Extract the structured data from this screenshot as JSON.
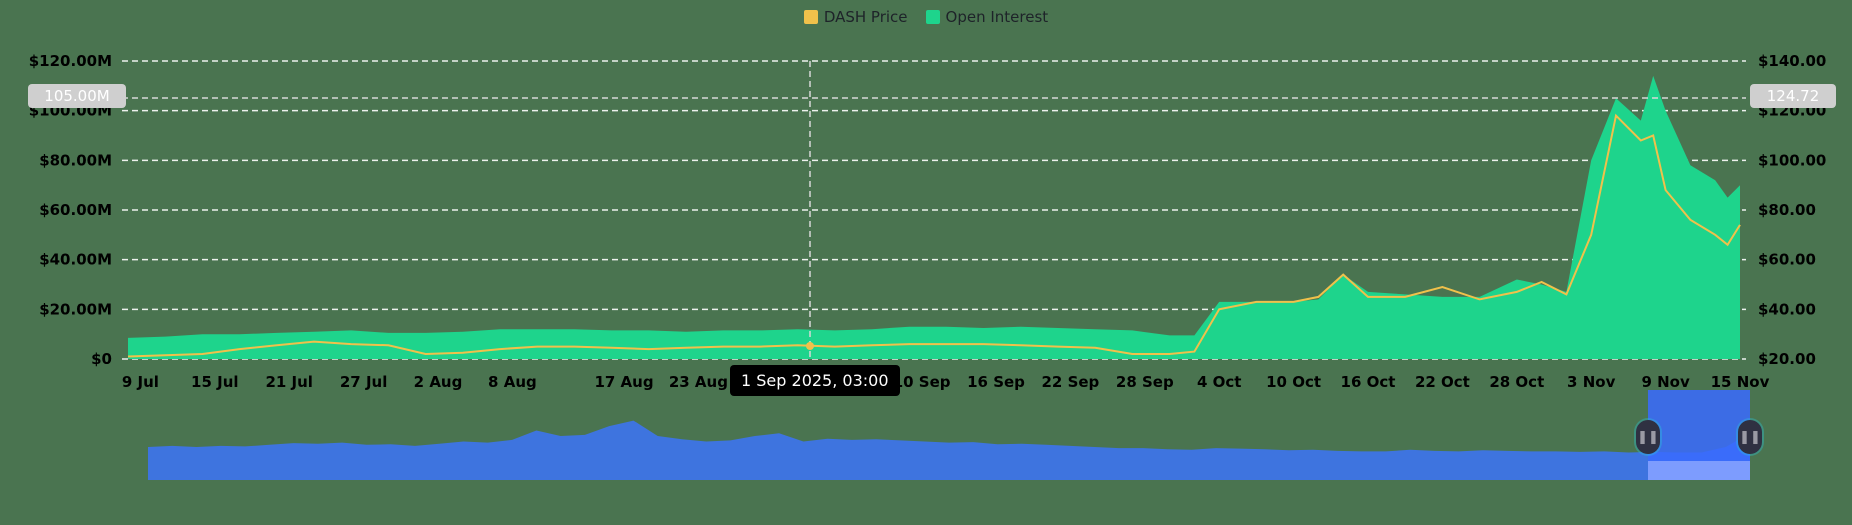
{
  "legend": {
    "items": [
      {
        "label": "DASH Price",
        "color": "#f0c14b"
      },
      {
        "label": "Open Interest",
        "color": "#1ed48c"
      }
    ]
  },
  "crosshair": {
    "date_label": "1 Sep 2025, 03:00",
    "left_value": "105.00M",
    "right_value": "124.72"
  },
  "navigator": {
    "left_handle_icon": "pause-grip-icon",
    "right_handle_icon": "pause-grip-icon",
    "fill_color": "#3e74df",
    "selection_color": "#3a6bff"
  },
  "chart_data": {
    "type": "area+line",
    "title": "",
    "legend_position": "top",
    "grid": true,
    "xlabel": "",
    "ylabel_left": "Open Interest",
    "ylabel_right": "DASH Price",
    "y_left_ticks": [
      "$0",
      "$20.00M",
      "$40.00M",
      "$60.00M",
      "$80.00M",
      "$100.00M",
      "$120.00M"
    ],
    "y_left_range": [
      0,
      120
    ],
    "y_right_ticks": [
      "$20.00",
      "$40.00",
      "$60.00",
      "$80.00",
      "$100.00",
      "$120.00",
      "$140.00"
    ],
    "y_right_range": [
      20,
      140
    ],
    "x_ticks": [
      "9 Jul",
      "15 Jul",
      "21 Jul",
      "27 Jul",
      "2 Aug",
      "8 Aug",
      "17 Aug",
      "23 Aug",
      "10 Sep",
      "16 Sep",
      "22 Sep",
      "28 Sep",
      "4 Oct",
      "10 Oct",
      "16 Oct",
      "22 Oct",
      "28 Oct",
      "3 Nov",
      "9 Nov",
      "15 Nov"
    ],
    "x": [
      "8 Jul",
      "11 Jul",
      "14 Jul",
      "17 Jul",
      "20 Jul",
      "23 Jul",
      "26 Jul",
      "29 Jul",
      "1 Aug",
      "4 Aug",
      "7 Aug",
      "10 Aug",
      "13 Aug",
      "16 Aug",
      "19 Aug",
      "22 Aug",
      "25 Aug",
      "28 Aug",
      "31 Aug",
      "3 Sep",
      "6 Sep",
      "9 Sep",
      "12 Sep",
      "15 Sep",
      "18 Sep",
      "21 Sep",
      "24 Sep",
      "27 Sep",
      "30 Sep",
      "2 Oct",
      "4 Oct",
      "7 Oct",
      "10 Oct",
      "12 Oct",
      "14 Oct",
      "16 Oct",
      "19 Oct",
      "22 Oct",
      "25 Oct",
      "28 Oct",
      "30 Oct",
      "1 Nov",
      "3 Nov",
      "5 Nov",
      "7 Nov",
      "8 Nov",
      "9 Nov",
      "11 Nov",
      "13 Nov",
      "14 Nov",
      "15 Nov"
    ],
    "series": [
      {
        "name": "Open Interest",
        "axis": "left",
        "unit": "$M",
        "color": "#1ed48c",
        "values": [
          8.5,
          9,
          10,
          10,
          10.5,
          11,
          11.5,
          10.5,
          10.5,
          11,
          12,
          12,
          12,
          11.5,
          11.5,
          11,
          11.5,
          11.5,
          12,
          11.5,
          12,
          13,
          13,
          12.5,
          13,
          12.5,
          12,
          11.5,
          9.5,
          9.5,
          23,
          23,
          23,
          24,
          34,
          27,
          26,
          25,
          25,
          32,
          30,
          27,
          80,
          105,
          96,
          114,
          100,
          78,
          72,
          65,
          70
        ]
      },
      {
        "name": "DASH Price",
        "axis": "right",
        "unit": "$",
        "color": "#f0c14b",
        "values": [
          21,
          21.5,
          22,
          24,
          25.5,
          27,
          26,
          25.5,
          22,
          22.5,
          24,
          25,
          25,
          24.5,
          24,
          24.5,
          25,
          25,
          25.5,
          25,
          25.5,
          26,
          26,
          26,
          25.5,
          25,
          24.5,
          22,
          22,
          23,
          40,
          43,
          43,
          45,
          54,
          45,
          45,
          49,
          44,
          47,
          51,
          46,
          70,
          118,
          108,
          110,
          88,
          76,
          70,
          66,
          74
        ]
      }
    ],
    "annotations": [
      {
        "type": "crosshair",
        "x": "1 Sep 2025, 03:00",
        "y_left": "105.00M",
        "y_right": "124.72"
      }
    ]
  }
}
